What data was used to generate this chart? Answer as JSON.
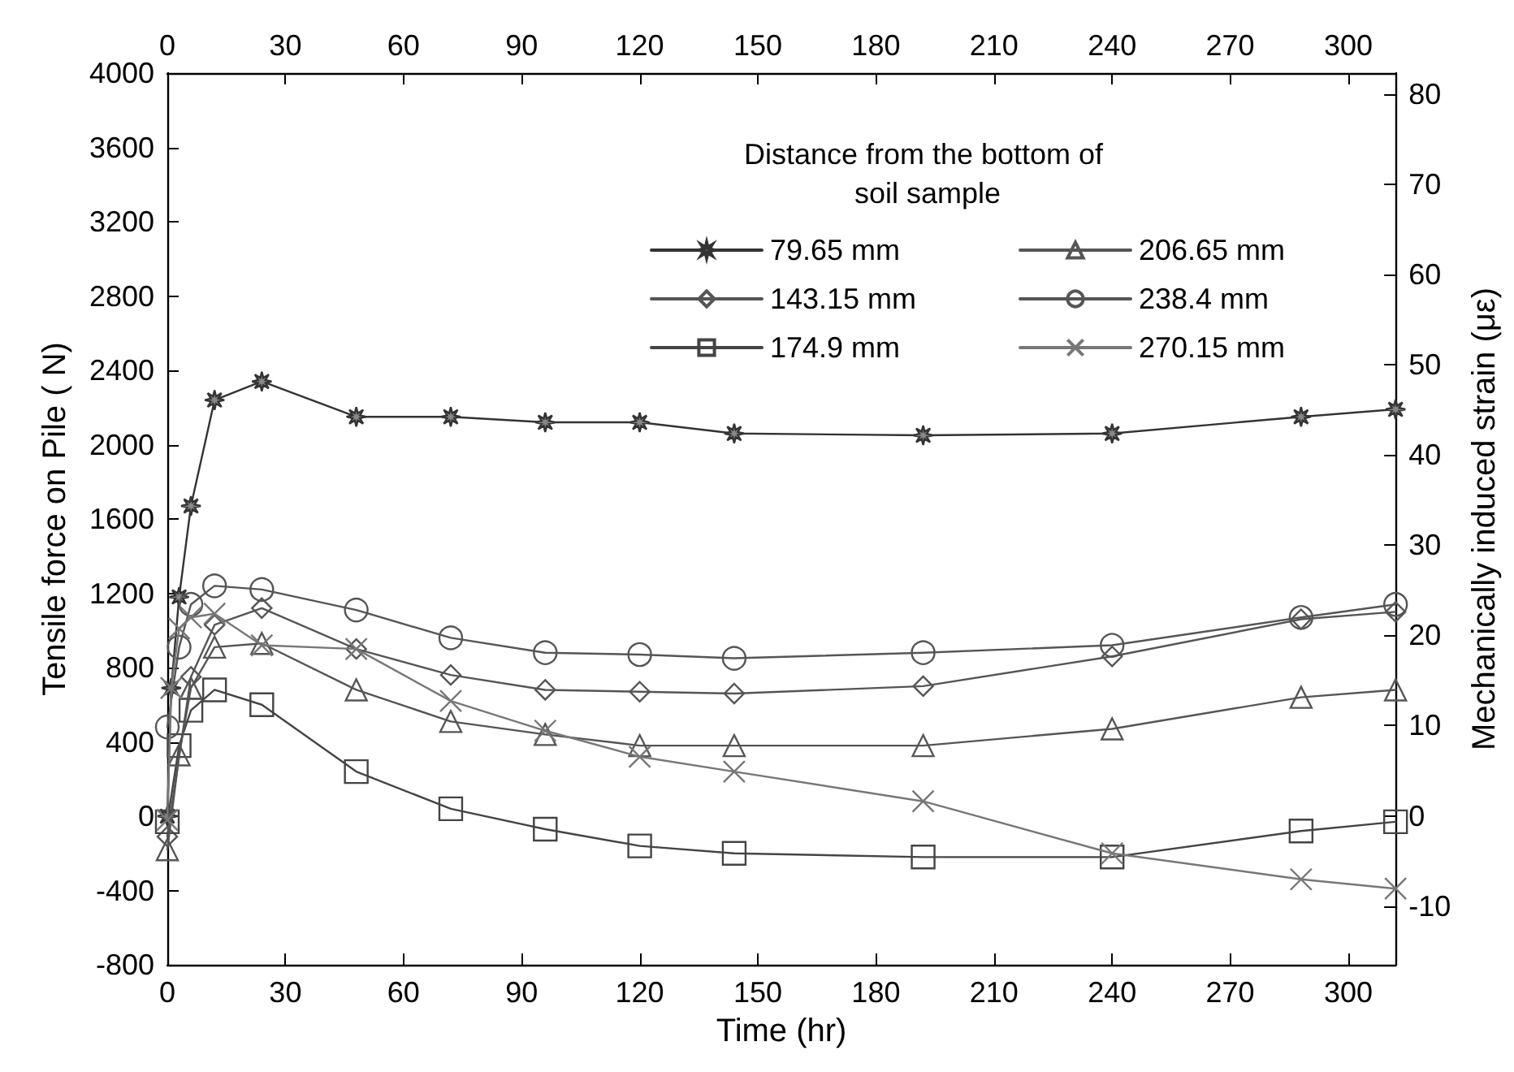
{
  "chart_data": {
    "type": "line",
    "xlabel": "Time (hr)",
    "ylabel": "Tensile force on Pile ( N)",
    "y2label": "Mechanically induced strain (με)",
    "legend_title": "Distance from the bottom of soil sample",
    "xlim": [
      0,
      312
    ],
    "xticks": [
      0,
      30,
      60,
      90,
      120,
      150,
      180,
      210,
      240,
      270,
      300
    ],
    "x2lim": [
      0,
      312
    ],
    "x2ticks": [
      0,
      30,
      60,
      90,
      120,
      150,
      180,
      210,
      240,
      270,
      300
    ],
    "ylim": [
      -800,
      4000
    ],
    "yticks": [
      -800,
      -400,
      0,
      400,
      800,
      1200,
      1600,
      2000,
      2400,
      2800,
      3200,
      3600,
      4000
    ],
    "y2lim": [
      -16.5,
      82.3
    ],
    "y2ticks": [
      -10,
      0,
      10,
      20,
      30,
      40,
      50,
      60,
      70,
      80
    ],
    "grid": false,
    "legend": "top right",
    "line_style": "solid",
    "series": [
      {
        "name": "79.65 mm",
        "color": "#333333",
        "marker": "star",
        "x": [
          0,
          1,
          3,
          6,
          12,
          24,
          48,
          72,
          96,
          120,
          144,
          192,
          240,
          288,
          312
        ],
        "values": [
          0,
          690,
          1180,
          1670,
          2240,
          2340,
          2150,
          2150,
          2120,
          2120,
          2060,
          2050,
          2060,
          2150,
          2190
        ]
      },
      {
        "name": "143.15 mm",
        "color": "#555555",
        "marker": "diamond",
        "x": [
          0,
          6,
          12,
          24,
          48,
          72,
          96,
          120,
          144,
          192,
          240,
          288,
          312
        ],
        "values": [
          -110,
          750,
          1030,
          1120,
          900,
          760,
          680,
          670,
          660,
          700,
          860,
          1060,
          1100
        ]
      },
      {
        "name": "174.9 mm",
        "color": "#444444",
        "marker": "square",
        "x": [
          0,
          3,
          6,
          12,
          24,
          48,
          72,
          96,
          120,
          144,
          192,
          240,
          288,
          312
        ],
        "values": [
          -30,
          380,
          570,
          680,
          600,
          240,
          40,
          -70,
          -160,
          -200,
          -220,
          -220,
          -80,
          -30
        ]
      },
      {
        "name": "206.65 mm",
        "color": "#555555",
        "marker": "triangle",
        "x": [
          0,
          3,
          6,
          12,
          24,
          48,
          72,
          96,
          120,
          144,
          192,
          240,
          288,
          312
        ],
        "values": [
          -180,
          330,
          690,
          910,
          930,
          680,
          510,
          440,
          380,
          380,
          380,
          470,
          640,
          680
        ]
      },
      {
        "name": "238.4 mm",
        "color": "#555555",
        "marker": "circle",
        "x": [
          0,
          3,
          6,
          12,
          24,
          48,
          72,
          96,
          120,
          144,
          192,
          240,
          288,
          312
        ],
        "values": [
          480,
          910,
          1140,
          1240,
          1220,
          1110,
          960,
          880,
          870,
          850,
          880,
          920,
          1070,
          1140
        ]
      },
      {
        "name": "270.15 mm",
        "color": "#777777",
        "marker": "cross",
        "x": [
          0,
          1,
          3,
          6,
          12,
          24,
          48,
          72,
          96,
          120,
          144,
          192,
          240,
          288,
          312
        ],
        "values": [
          -20,
          690,
          1010,
          1070,
          1090,
          920,
          900,
          620,
          460,
          320,
          240,
          80,
          -200,
          -340,
          -390
        ]
      }
    ]
  }
}
